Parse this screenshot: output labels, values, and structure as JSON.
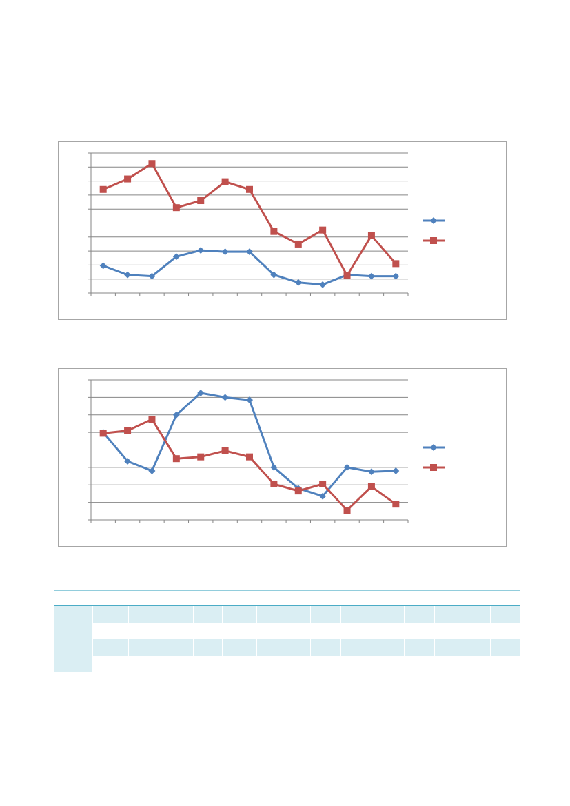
{
  "charts": [
    {
      "type": "line",
      "categories": [
        "",
        "",
        "",
        "",
        "",
        "",
        "",
        "",
        "",
        "",
        "",
        "",
        ""
      ],
      "series": [
        {
          "values": [
            1.95,
            1.3,
            1.2,
            2.6,
            3.05,
            2.95,
            2.95,
            1.3,
            0.75,
            0.6,
            1.3,
            1.2,
            1.2
          ],
          "color": "#4f81bd",
          "marker": "diamond"
        },
        {
          "values": [
            7.4,
            8.15,
            9.25,
            6.1,
            6.6,
            7.95,
            7.4,
            4.4,
            3.5,
            4.5,
            1.25,
            4.1,
            2.1
          ],
          "color": "#c0504d",
          "marker": "square"
        }
      ],
      "ylim": [
        0,
        10
      ],
      "y_gridlines": 10,
      "grid": true,
      "legend": "right"
    },
    {
      "type": "line",
      "categories": [
        "",
        "",
        "",
        "",
        "",
        "",
        "",
        "",
        "",
        "",
        "",
        "",
        ""
      ],
      "series": [
        {
          "values": [
            5.0,
            3.35,
            2.8,
            6.0,
            7.25,
            7.0,
            6.85,
            3.0,
            1.8,
            1.35,
            3.0,
            2.75,
            2.8
          ],
          "color": "#4f81bd",
          "marker": "diamond"
        },
        {
          "values": [
            4.95,
            5.1,
            5.75,
            3.5,
            3.6,
            3.95,
            3.6,
            2.05,
            1.65,
            2.05,
            0.55,
            1.9,
            0.9
          ],
          "color": "#c0504d",
          "marker": "square"
        }
      ],
      "ylim": [
        0,
        8
      ],
      "y_gridlines": 8,
      "grid": true,
      "legend": "right"
    }
  ],
  "table": {
    "column_count": 15,
    "header": [
      "",
      "",
      "",
      "",
      "",
      "",
      "",
      "",
      "",
      "",
      "",
      "",
      "",
      "",
      ""
    ],
    "rows": [
      [
        "",
        "",
        "",
        "",
        "",
        "",
        "",
        "",
        "",
        "",
        "",
        "",
        "",
        "",
        ""
      ],
      [
        "",
        "",
        "",
        "",
        "",
        "",
        "",
        "",
        "",
        "",
        "",
        "",
        "",
        "",
        ""
      ],
      [
        "",
        "",
        "",
        "",
        "",
        "",
        "",
        "",
        "",
        "",
        "",
        "",
        "",
        "",
        ""
      ],
      [
        "",
        "",
        "",
        "",
        "",
        "",
        "",
        "",
        "",
        "",
        "",
        "",
        "",
        "",
        ""
      ]
    ],
    "band_color": "#daeef3",
    "rule_color": "#4bacc6"
  }
}
